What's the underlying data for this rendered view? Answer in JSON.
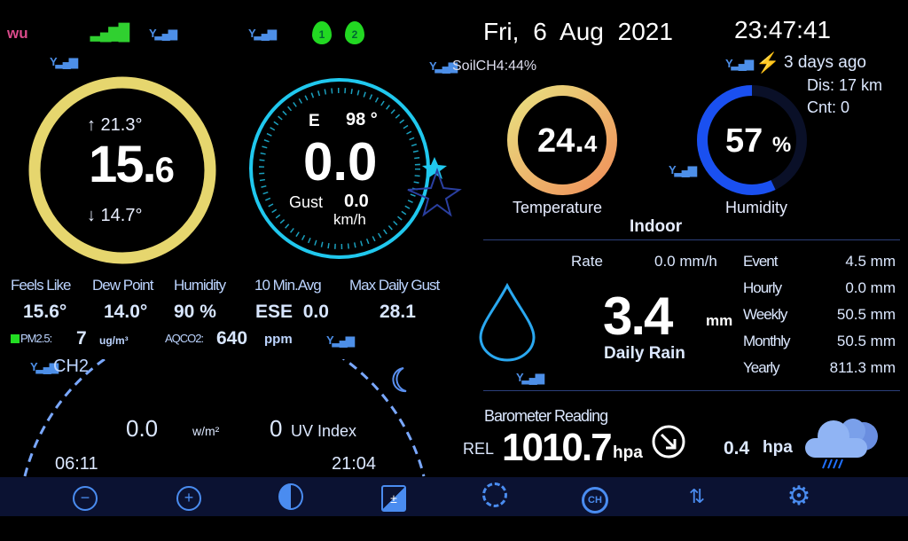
{
  "header": {
    "day": "Fri,",
    "date": "6",
    "month": "Aug",
    "year": "2021",
    "time": "23:47:41",
    "logo": "wu"
  },
  "status": {
    "soil": "SoilCH4:44%",
    "leak_sensors": [
      "1",
      "2"
    ]
  },
  "lightning": {
    "last": "3 days ago",
    "distance": "Dis: 17 km",
    "count": "Cnt: 0"
  },
  "outdoor": {
    "temp": "15.6",
    "temp_int": "15.",
    "temp_dec": "6",
    "high": "↑ 21.3°",
    "low": "↓ 14.7°",
    "ring_color": "#e6d66e"
  },
  "wind": {
    "direction": "E",
    "degrees": "98 °",
    "speed": "0.0",
    "gust_label": "Gust",
    "gust": "0.0",
    "unit": "km/h",
    "ring_color": "#20c8ee"
  },
  "indoor": {
    "title": "Indoor",
    "temp_int": "24.",
    "temp_dec": "4",
    "temp_label": "Temperature",
    "humidity": "57",
    "humidity_unit": "%",
    "humidity_label": "Humidity",
    "humidity_fraction": 0.57
  },
  "stats": {
    "labels": [
      "Feels Like",
      "Dew Point",
      "Humidity",
      "10 Min.Avg",
      "Max Daily Gust"
    ],
    "values": [
      "15.6°",
      "14.0°",
      "90 %",
      "ESE  0.0",
      "28.1"
    ]
  },
  "air": {
    "pm_label": "PM2.5:",
    "pm_value": "7",
    "pm_unit": "ug/m³",
    "co2_label": "AQCO2:",
    "co2_value": "640",
    "co2_unit": "ppm",
    "channel": "CH2",
    "pm_status_color": "#22dd22"
  },
  "solar": {
    "radiation": "0.0",
    "radiation_unit": "w/m²",
    "uv": "0",
    "uv_label": "UV Index",
    "sunrise": "06:11",
    "sunset": "21:04"
  },
  "rain": {
    "rate_label": "Rate",
    "rate": "0.0 mm/h",
    "daily": "3.4",
    "daily_unit": "mm",
    "daily_label": "Daily Rain",
    "rows": [
      {
        "label": "Event",
        "value": "4.5 mm"
      },
      {
        "label": "Hourly",
        "value": "0.0 mm"
      },
      {
        "label": "Weekly",
        "value": "50.5 mm"
      },
      {
        "label": "Monthly",
        "value": "50.5 mm"
      },
      {
        "label": "Yearly",
        "value": "811.3 mm"
      }
    ]
  },
  "barometer": {
    "title": "Barometer Reading",
    "mode": "REL",
    "value": "1010.7",
    "unit": "hpa",
    "change": "0.4",
    "change_unit": "hpa",
    "forecast": "rain"
  },
  "toolbar": [
    "zoom-out",
    "zoom-in",
    "contrast",
    "brightness",
    "gauge",
    "channel-cycle",
    "sort",
    "settings"
  ]
}
